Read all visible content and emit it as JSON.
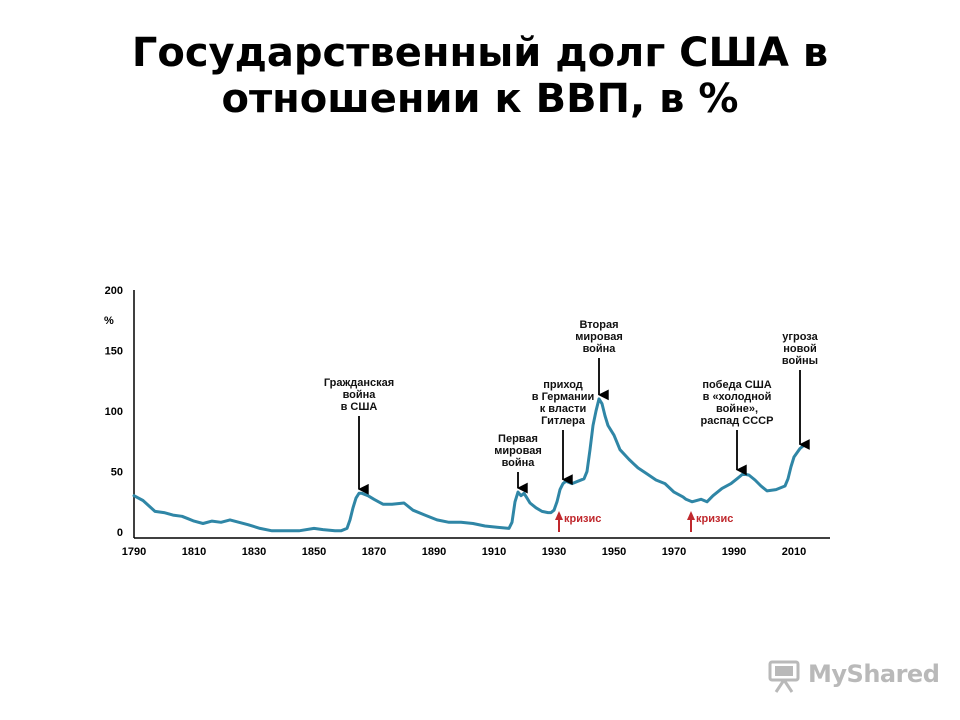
{
  "page": {
    "title_line1": "Государственный долг США в",
    "title_line2": "отношении к ВВП, в %"
  },
  "watermark": {
    "text": "MyShared",
    "icon": "projector-icon",
    "color": "#b9b9b9"
  },
  "chart_data": {
    "type": "line",
    "title": "Государственный долг США в отношении к ВВП, в %",
    "ylabel": "%",
    "xlabel": "",
    "xlim": [
      1790,
      2022
    ],
    "ylim": [
      0,
      200
    ],
    "x_ticks": [
      "1790",
      "1810",
      "1830",
      "1850",
      "1870",
      "1890",
      "1910",
      "1930",
      "1950",
      "1970",
      "1990",
      "2010"
    ],
    "y_ticks": [
      "200",
      "150",
      "100",
      "50",
      "0"
    ],
    "grid": false,
    "line_color": "#2f86a6",
    "series": [
      {
        "x": [
          1790,
          1793,
          1797,
          1800,
          1803,
          1806,
          1808,
          1810,
          1813,
          1816,
          1819,
          1822,
          1825,
          1828,
          1832,
          1836,
          1840,
          1845,
          1850,
          1853,
          1857,
          1859,
          1861,
          1862,
          1863,
          1864,
          1865,
          1866,
          1868,
          1870,
          1873,
          1876,
          1880,
          1883,
          1887,
          1891,
          1895,
          1899,
          1903,
          1907,
          1911,
          1915,
          1916,
          1917,
          1918,
          1919,
          1920,
          1921,
          1922,
          1924,
          1926,
          1928,
          1929,
          1930,
          1931,
          1932,
          1933,
          1934,
          1936,
          1938,
          1940,
          1941,
          1942,
          1943,
          1944,
          1945,
          1946,
          1947,
          1948,
          1950,
          1952,
          1955,
          1958,
          1961,
          1964,
          1967,
          1970,
          1973,
          1974,
          1976,
          1979,
          1981,
          1983,
          1986,
          1989,
          1991,
          1993,
          1995,
          1997,
          1999,
          2001,
          2004,
          2007,
          2008,
          2009,
          2010,
          2012,
          2014
        ],
        "values": [
          30,
          26,
          17,
          16,
          14,
          13,
          11,
          9,
          7,
          9,
          8,
          10,
          8,
          6,
          3,
          1,
          1,
          1,
          3,
          2,
          1,
          1,
          3,
          10,
          20,
          28,
          32,
          32,
          30,
          27,
          23,
          23,
          24,
          18,
          14,
          10,
          8,
          8,
          7,
          5,
          4,
          3,
          8,
          25,
          33,
          30,
          32,
          28,
          24,
          20,
          17,
          16,
          16,
          18,
          25,
          35,
          40,
          42,
          40,
          42,
          44,
          50,
          68,
          88,
          100,
          110,
          106,
          96,
          88,
          80,
          68,
          60,
          53,
          48,
          43,
          40,
          33,
          29,
          27,
          25,
          27,
          25,
          30,
          36,
          40,
          44,
          48,
          47,
          43,
          38,
          34,
          35,
          38,
          44,
          54,
          62,
          69,
          73
        ]
      }
    ],
    "annotations": [
      {
        "lines": [
          "Гражданская",
          "война",
          "в США"
        ],
        "x": 1865,
        "y": 32
      },
      {
        "lines": [
          "Первая",
          "мировая",
          "война"
        ],
        "x": 1918,
        "y": 33
      },
      {
        "lines": [
          "приход",
          "в Германии",
          "к власти",
          "Гитлера"
        ],
        "x": 1933,
        "y": 40
      },
      {
        "lines": [
          "Вторая",
          "мировая",
          "война"
        ],
        "x": 1945,
        "y": 110
      },
      {
        "lines": [
          "победа США",
          "в «холодной",
          "войне»,",
          "распад СССР"
        ],
        "x": 1991,
        "y": 48
      },
      {
        "lines": [
          "угроза",
          "новой",
          "войны"
        ],
        "x": 2012,
        "y": 69
      }
    ],
    "crisis_markers": [
      {
        "label": "кризис",
        "x": 1929
      },
      {
        "label": "кризис",
        "x": 1973
      }
    ],
    "annotation_arrow_color": "#000000",
    "crisis_color": "#c0282d"
  }
}
